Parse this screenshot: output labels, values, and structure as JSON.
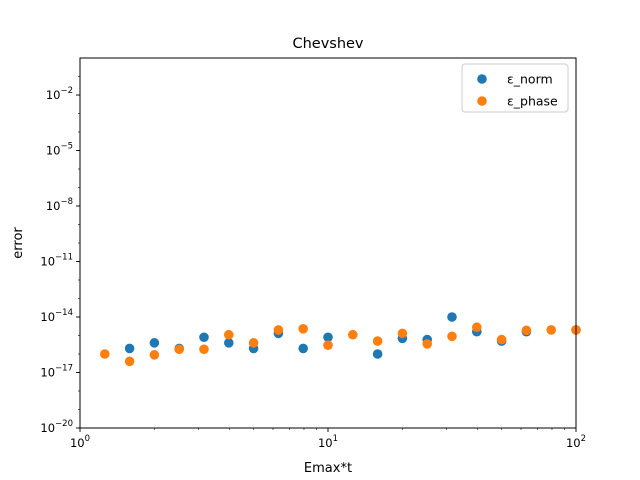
{
  "chart_data": {
    "type": "scatter",
    "title": "Chevshev",
    "xlabel": "Emax*t",
    "ylabel": "error",
    "x_scale": "log",
    "y_scale": "log",
    "xlim": [
      1,
      100
    ],
    "ylim": [
      1e-20,
      1
    ],
    "x_ticks": [
      {
        "value": 1,
        "base": "10",
        "exp": "0"
      },
      {
        "value": 10,
        "base": "10",
        "exp": "1"
      },
      {
        "value": 100,
        "base": "10",
        "exp": "2"
      }
    ],
    "y_ticks": [
      {
        "value": 1e-20,
        "base": "10",
        "exp": "−20"
      },
      {
        "value": 1e-17,
        "base": "10",
        "exp": "−17"
      },
      {
        "value": 1e-14,
        "base": "10",
        "exp": "−14"
      },
      {
        "value": 1e-11,
        "base": "10",
        "exp": "−11"
      },
      {
        "value": 1e-08,
        "base": "10",
        "exp": "−8"
      },
      {
        "value": 1e-05,
        "base": "10",
        "exp": "−5"
      },
      {
        "value": 0.01,
        "base": "10",
        "exp": "−2"
      }
    ],
    "grid": false,
    "legend_position": "top-right",
    "series": [
      {
        "name": "ε_norm",
        "color": "#1f77b4",
        "points": [
          {
            "x": 1.585,
            "y": 2e-16
          },
          {
            "x": 1.995,
            "y": 4e-16
          },
          {
            "x": 2.512,
            "y": 2e-16
          },
          {
            "x": 3.162,
            "y": 8e-16
          },
          {
            "x": 3.981,
            "y": 4e-16
          },
          {
            "x": 5.012,
            "y": 2e-16
          },
          {
            "x": 6.31,
            "y": 1.3e-15
          },
          {
            "x": 7.943,
            "y": 2e-16
          },
          {
            "x": 10.0,
            "y": 8e-16
          },
          {
            "x": 15.85,
            "y": 1e-16
          },
          {
            "x": 19.95,
            "y": 7e-16
          },
          {
            "x": 25.12,
            "y": 6e-16
          },
          {
            "x": 31.62,
            "y": 1e-14
          },
          {
            "x": 39.81,
            "y": 1.6e-15
          },
          {
            "x": 50.12,
            "y": 5e-16
          },
          {
            "x": 63.1,
            "y": 1.6e-15
          },
          {
            "x": 100.0,
            "y": 2e-15
          }
        ]
      },
      {
        "name": "ε_phase",
        "color": "#ff7f0e",
        "points": [
          {
            "x": 1.259,
            "y": 1e-16
          },
          {
            "x": 1.585,
            "y": 4e-17
          },
          {
            "x": 1.995,
            "y": 9e-17
          },
          {
            "x": 2.512,
            "y": 1.8e-16
          },
          {
            "x": 3.162,
            "y": 1.8e-16
          },
          {
            "x": 3.981,
            "y": 1.1e-15
          },
          {
            "x": 5.012,
            "y": 4e-16
          },
          {
            "x": 6.31,
            "y": 2e-15
          },
          {
            "x": 7.943,
            "y": 2.3e-15
          },
          {
            "x": 10.0,
            "y": 3e-16
          },
          {
            "x": 12.59,
            "y": 1.1e-15
          },
          {
            "x": 15.85,
            "y": 5e-16
          },
          {
            "x": 19.95,
            "y": 1.3e-15
          },
          {
            "x": 25.12,
            "y": 3.5e-16
          },
          {
            "x": 31.62,
            "y": 9e-16
          },
          {
            "x": 39.81,
            "y": 2.8e-15
          },
          {
            "x": 50.12,
            "y": 6e-16
          },
          {
            "x": 63.1,
            "y": 1.9e-15
          },
          {
            "x": 79.43,
            "y": 2e-15
          },
          {
            "x": 100.0,
            "y": 2e-15
          }
        ]
      }
    ]
  }
}
